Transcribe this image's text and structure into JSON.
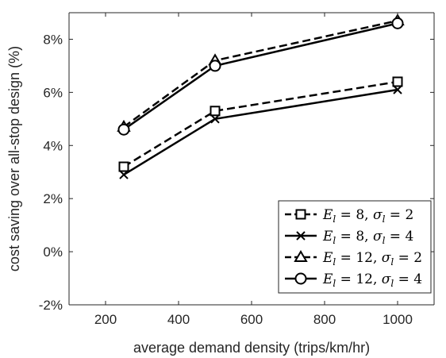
{
  "chart_data": {
    "type": "line",
    "title": "",
    "xlabel": "average demand density (trips/km/hr)",
    "ylabel": "cost saving over all-stop design (%)",
    "xlim": [
      100,
      1100
    ],
    "ylim": [
      -2,
      9
    ],
    "xticks": [
      200,
      400,
      600,
      800,
      1000
    ],
    "yticks": [
      -2,
      0,
      2,
      4,
      6,
      8
    ],
    "xtick_labels": [
      "200",
      "400",
      "600",
      "800",
      "1000"
    ],
    "ytick_labels": [
      "-2%",
      "0%",
      "2%",
      "4%",
      "6%",
      "8%"
    ],
    "grid": false,
    "legend_position": "bottom-right",
    "x": [
      250,
      500,
      1000
    ],
    "series": [
      {
        "name": "E_l = 8, σ_l = 2",
        "values": [
          3.2,
          5.3,
          6.4
        ],
        "marker": "square",
        "linestyle": "dashed",
        "color": "#000000"
      },
      {
        "name": "E_l = 8, σ_l = 4",
        "values": [
          2.9,
          5.0,
          6.1
        ],
        "marker": "x",
        "linestyle": "solid",
        "color": "#000000"
      },
      {
        "name": "E_l = 12, σ_l = 2",
        "values": [
          4.7,
          7.2,
          8.7
        ],
        "marker": "triangle",
        "linestyle": "dashed",
        "color": "#000000"
      },
      {
        "name": "E_l = 12, σ_l = 4",
        "values": [
          4.6,
          7.0,
          8.6
        ],
        "marker": "circle",
        "linestyle": "solid",
        "color": "#000000"
      }
    ],
    "legend_display": [
      {
        "E": "8",
        "sigma": "2"
      },
      {
        "E": "8",
        "sigma": "4"
      },
      {
        "E": "12",
        "sigma": "2"
      },
      {
        "E": "12",
        "sigma": "4"
      }
    ]
  }
}
